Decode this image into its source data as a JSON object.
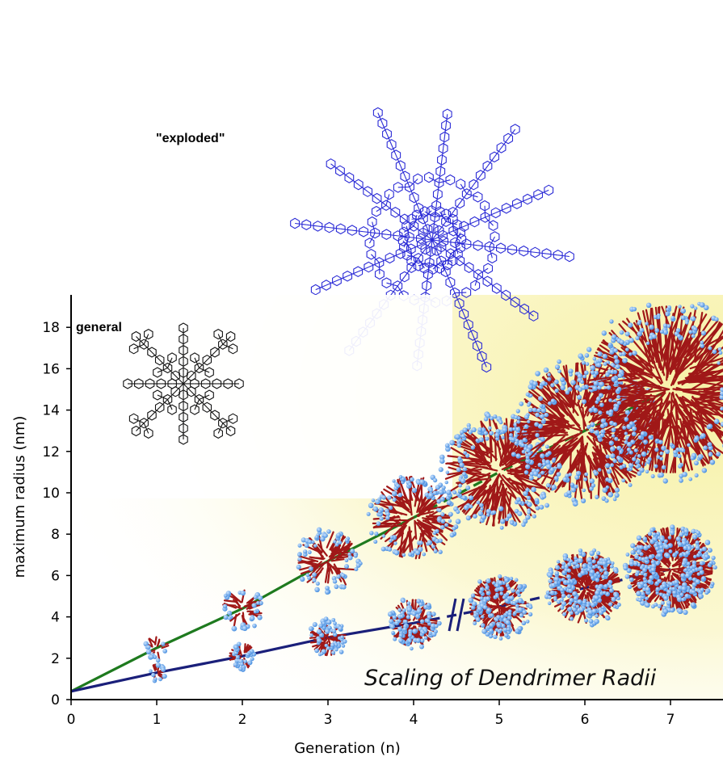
{
  "labels": {
    "exploded": "\"exploded\"",
    "general": "general"
  },
  "colors": {
    "green_series": "#1e7a1e",
    "blue_series": "#1a1f7a",
    "atom_blue": "#5fa8f0",
    "bond_red": "#a01818",
    "structure_blue": "#2b2bd6",
    "background_glow": "#fbf7c8"
  },
  "chart_data": {
    "type": "line",
    "title": "Scaling of Dendrimer Radii",
    "xlabel": "Generation (n)",
    "ylabel": "maximum radius (nm)",
    "xlim": [
      0,
      7.5
    ],
    "ylim": [
      0,
      19.5
    ],
    "x_ticks": [
      0,
      1,
      2,
      3,
      4,
      5,
      6,
      7
    ],
    "y_ticks": [
      0,
      2,
      4,
      6,
      8,
      10,
      12,
      14,
      16,
      18
    ],
    "grid": false,
    "legend": "none",
    "series": [
      {
        "color": "#1e7a1e",
        "x": [
          0,
          1,
          2,
          3,
          4,
          5,
          6,
          7
        ],
        "y": [
          0.4,
          2.5,
          4.4,
          6.7,
          8.8,
          11.0,
          13.0,
          15.0
        ],
        "solid_until_x": 4
      },
      {
        "color": "#1a1f7a",
        "x": [
          0,
          1,
          2,
          3,
          4,
          5,
          6,
          7
        ],
        "y": [
          0.4,
          1.3,
          2.1,
          3.0,
          3.7,
          4.5,
          5.4,
          6.3
        ],
        "solid_until_x": 4,
        "axis_break_x": 4.5
      }
    ]
  }
}
